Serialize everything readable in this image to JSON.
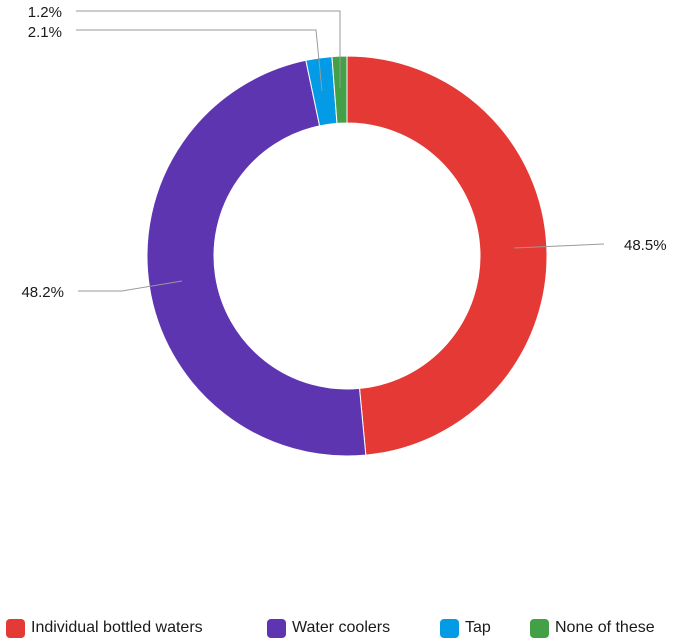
{
  "chart_data": {
    "type": "pie",
    "variant": "donut",
    "title": "",
    "categories": [
      "Individual bottled waters",
      "Water coolers",
      "Tap",
      "None of these"
    ],
    "values": [
      48.5,
      48.2,
      2.1,
      1.2
    ],
    "labels": [
      "48.5%",
      "48.2%",
      "2.1%",
      "1.2%"
    ],
    "colors": [
      "#e53935",
      "#5e35b1",
      "#039be5",
      "#43a047"
    ],
    "legend_position": "bottom"
  }
}
